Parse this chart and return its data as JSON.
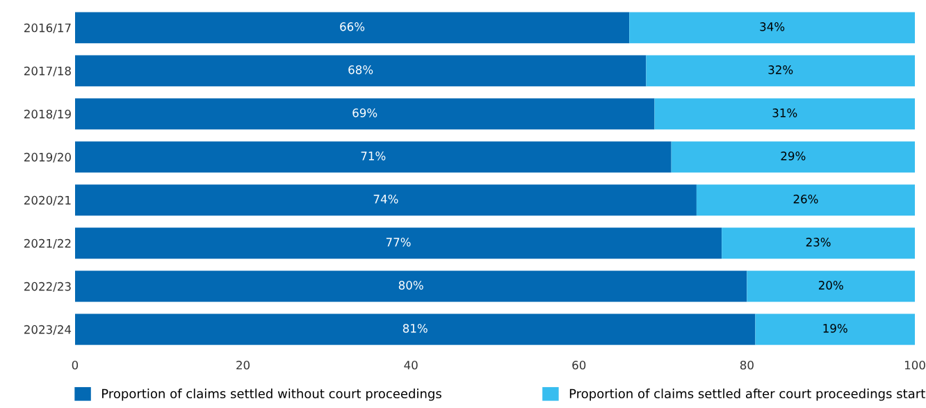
{
  "chart_data": {
    "type": "bar",
    "orientation": "horizontal",
    "stacked": true,
    "categories": [
      "2016/17",
      "2017/18",
      "2018/19",
      "2019/20",
      "2020/21",
      "2021/22",
      "2022/23",
      "2023/24"
    ],
    "series": [
      {
        "name": "Proportion of claims settled without court proceedings",
        "color": "#0369b3",
        "values": [
          66,
          68,
          69,
          71,
          74,
          77,
          80,
          81
        ],
        "value_labels": [
          "66%",
          "68%",
          "69%",
          "71%",
          "74%",
          "77%",
          "80%",
          "81%"
        ]
      },
      {
        "name": "Proportion of claims settled after court proceedings start",
        "color": "#38bdef",
        "values": [
          34,
          32,
          31,
          29,
          26,
          23,
          20,
          19
        ],
        "value_labels": [
          "34%",
          "32%",
          "31%",
          "29%",
          "26%",
          "23%",
          "20%",
          "19%"
        ]
      }
    ],
    "xlim": [
      0,
      100
    ],
    "xticks": [
      0,
      20,
      40,
      60,
      80,
      100
    ],
    "grid": false,
    "legend": "bottom"
  }
}
